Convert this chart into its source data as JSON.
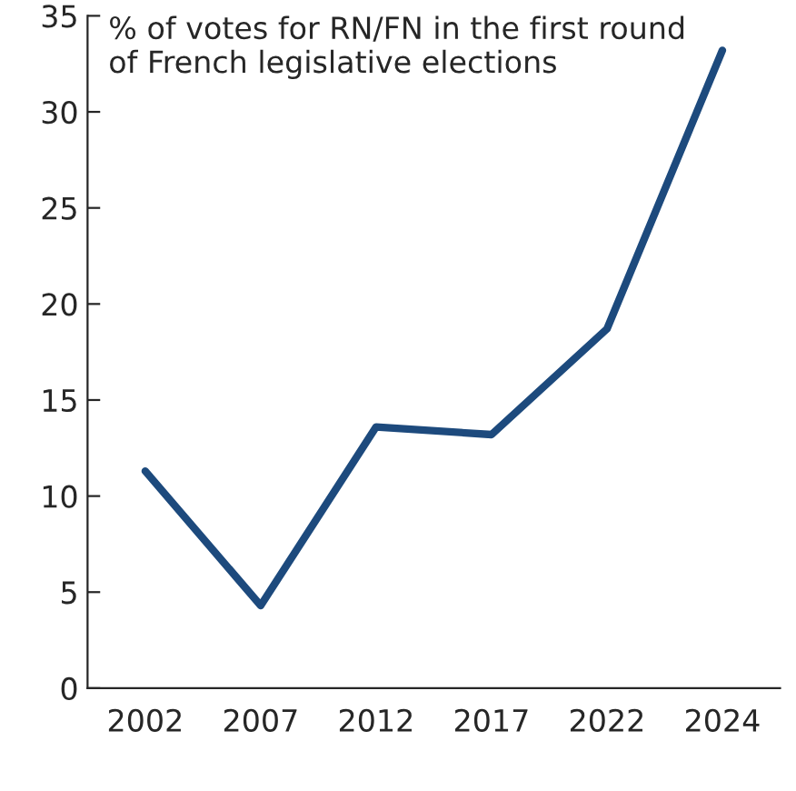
{
  "chart_data": {
    "type": "line",
    "title": "% of votes for RN/FN in the first round\nof French legislative elections",
    "categories": [
      "2002",
      "2007",
      "2012",
      "2017",
      "2022",
      "2024"
    ],
    "series": [
      {
        "color": "#1d4a7d",
        "values": [
          11.3,
          4.3,
          13.6,
          13.2,
          18.7,
          33.2
        ]
      }
    ],
    "ylim": [
      0,
      35
    ],
    "yticks": [
      0,
      5,
      10,
      15,
      20,
      25,
      30,
      35
    ],
    "grid": false,
    "marker": "none",
    "line_style": "solid"
  }
}
